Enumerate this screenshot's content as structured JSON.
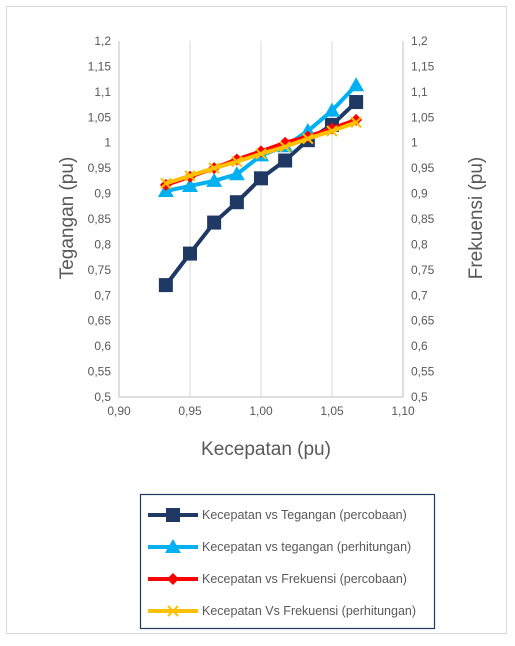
{
  "chart_data": {
    "type": "line",
    "title": "",
    "xlabel": "Kecepatan (pu)",
    "ylabel": "Tegangan  (pu)",
    "y2label": "Frekuensi (pu)",
    "xlim": [
      0.9,
      1.1
    ],
    "ylim": [
      0.5,
      1.2
    ],
    "y2lim": [
      0.5,
      1.2
    ],
    "x_ticks": [
      "0,90",
      "0,95",
      "1,00",
      "1,05",
      "1,10"
    ],
    "y_ticks": [
      "0,5",
      "0,55",
      "0,6",
      "0,65",
      "0,7",
      "0,75",
      "0,8",
      "0,85",
      "0,9",
      "0,95",
      "1",
      "1,05",
      "1,1",
      "1,15",
      "1,2"
    ],
    "grid": "vertical",
    "legend_position": "bottom",
    "series": [
      {
        "name": "Kecepatan vs Tegangan (percobaan)",
        "color": "#1F3864",
        "marker": "square",
        "x": [
          0.933,
          0.95,
          0.967,
          0.983,
          1.0,
          1.017,
          1.033,
          1.05,
          1.067
        ],
        "y": [
          0.72,
          0.782,
          0.843,
          0.883,
          0.93,
          0.965,
          1.005,
          1.035,
          1.08
        ]
      },
      {
        "name": "Kecepatan vs tegangan (perhitungan)",
        "color": "#00B0F0",
        "marker": "triangle",
        "x": [
          0.933,
          0.95,
          0.967,
          0.983,
          1.0,
          1.017,
          1.033,
          1.05,
          1.067
        ],
        "y": [
          0.905,
          0.915,
          0.925,
          0.938,
          0.975,
          0.993,
          1.023,
          1.063,
          1.113
        ]
      },
      {
        "name": "Kecepatan vs Frekuensi (percobaan)",
        "color": "#FF0000",
        "marker": "diamond",
        "x": [
          0.933,
          0.95,
          0.967,
          0.983,
          1.0,
          1.017,
          1.033,
          1.05,
          1.067
        ],
        "y": [
          0.917,
          0.933,
          0.95,
          0.967,
          0.983,
          1.0,
          1.012,
          1.028,
          1.045
        ]
      },
      {
        "name": "Kecepatan Vs Frekuensi (perhitungan)",
        "color": "#FFC000",
        "marker": "x",
        "x": [
          0.933,
          0.95,
          0.967,
          0.983,
          1.0,
          1.017,
          1.033,
          1.05,
          1.067
        ],
        "y": [
          0.92,
          0.935,
          0.95,
          0.963,
          0.978,
          0.992,
          1.008,
          1.023,
          1.04
        ]
      }
    ]
  }
}
